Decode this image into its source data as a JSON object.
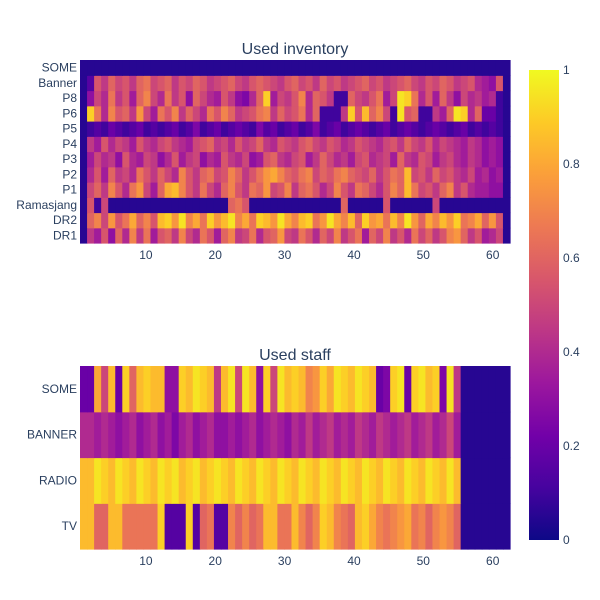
{
  "chart_data": [
    {
      "type": "heatmap",
      "title": "Used inventory",
      "y_categories": [
        "DR1",
        "DR2",
        "Ramasjang",
        "P1",
        "P2",
        "P3",
        "P4",
        "P5",
        "P6",
        "P8",
        "Banner",
        "SOME"
      ],
      "x_range": [
        1,
        62
      ],
      "x_ticks": [
        10,
        20,
        30,
        40,
        50,
        60
      ],
      "z_range": [
        0,
        1
      ],
      "colorscale": "plasma",
      "z": [
        [
          0.05,
          0.45,
          0.35,
          0.55,
          0.3,
          0.6,
          0.4,
          0.7,
          0.45,
          0.65,
          0.35,
          0.55,
          0.6,
          0.45,
          0.7,
          0.5,
          0.4,
          0.65,
          0.55,
          0.35,
          0.6,
          0.7,
          0.45,
          0.5,
          0.65,
          0.4,
          0.55,
          0.6,
          0.75,
          0.5,
          0.45,
          0.65,
          0.55,
          0.4,
          0.6,
          0.5,
          0.7,
          0.45,
          0.55,
          0.65,
          0.35,
          0.6,
          0.5,
          0.7,
          0.45,
          0.55,
          0.4,
          0.65,
          0.5,
          0.6,
          0.45,
          0.55,
          0.7,
          0.75,
          0.6,
          0.45,
          0.55,
          0.35,
          0.4,
          0.5,
          0.05
        ],
        [
          0.05,
          0.6,
          0.7,
          0.5,
          0.75,
          0.55,
          0.65,
          0.8,
          0.6,
          0.7,
          0.55,
          0.85,
          0.9,
          0.75,
          0.95,
          0.7,
          0.8,
          0.65,
          0.9,
          0.75,
          0.85,
          0.95,
          0.7,
          0.8,
          0.65,
          0.9,
          0.85,
          0.75,
          0.95,
          0.8,
          0.7,
          0.85,
          0.9,
          0.65,
          0.75,
          0.95,
          0.8,
          0.7,
          0.85,
          0.6,
          0.9,
          0.75,
          0.8,
          0.65,
          0.85,
          0.7,
          0.95,
          0.75,
          0.6,
          0.8,
          0.7,
          0.85,
          0.75,
          0.9,
          0.65,
          0.7,
          0.8,
          0.6,
          0.75,
          0.55,
          0.05
        ],
        [
          0.05,
          0.55,
          0.1,
          0.5,
          0.05,
          0.05,
          0.05,
          0.05,
          0.05,
          0.05,
          0.05,
          0.05,
          0.05,
          0.05,
          0.05,
          0.05,
          0.05,
          0.05,
          0.05,
          0.05,
          0.05,
          0.6,
          0.65,
          0.55,
          0.05,
          0.05,
          0.05,
          0.05,
          0.05,
          0.05,
          0.05,
          0.05,
          0.05,
          0.05,
          0.05,
          0.05,
          0.05,
          0.6,
          0.05,
          0.05,
          0.05,
          0.05,
          0.05,
          0.55,
          0.05,
          0.05,
          0.05,
          0.05,
          0.05,
          0.05,
          0.5,
          0.05,
          0.05,
          0.05,
          0.05,
          0.05,
          0.05,
          0.05,
          0.05,
          0.05,
          0.05
        ],
        [
          0.05,
          0.5,
          0.6,
          0.45,
          0.7,
          0.55,
          0.4,
          0.65,
          0.75,
          0.5,
          0.35,
          0.6,
          0.8,
          0.85,
          0.7,
          0.55,
          0.45,
          0.65,
          0.5,
          0.4,
          0.6,
          0.7,
          0.55,
          0.45,
          0.65,
          0.6,
          0.75,
          0.5,
          0.55,
          0.7,
          0.45,
          0.6,
          0.65,
          0.55,
          0.4,
          0.5,
          0.7,
          0.55,
          0.45,
          0.65,
          0.6,
          0.5,
          0.4,
          0.55,
          0.7,
          0.6,
          0.85,
          0.65,
          0.5,
          0.55,
          0.45,
          0.6,
          0.7,
          0.45,
          0.55,
          0.4,
          0.35,
          0.35,
          0.3,
          0.3,
          0.05
        ],
        [
          0.05,
          0.4,
          0.55,
          0.35,
          0.6,
          0.45,
          0.5,
          0.4,
          0.65,
          0.55,
          0.45,
          0.6,
          0.5,
          0.4,
          0.7,
          0.55,
          0.45,
          0.6,
          0.65,
          0.5,
          0.55,
          0.7,
          0.6,
          0.45,
          0.55,
          0.65,
          0.75,
          0.8,
          0.7,
          0.6,
          0.55,
          0.65,
          0.7,
          0.5,
          0.6,
          0.55,
          0.65,
          0.7,
          0.6,
          0.55,
          0.5,
          0.6,
          0.45,
          0.55,
          0.65,
          0.6,
          0.85,
          0.5,
          0.55,
          0.45,
          0.6,
          0.5,
          0.55,
          0.45,
          0.4,
          0.5,
          0.35,
          0.4,
          0.3,
          0.35,
          0.05
        ],
        [
          0.05,
          0.35,
          0.5,
          0.4,
          0.45,
          0.3,
          0.55,
          0.4,
          0.35,
          0.5,
          0.45,
          0.3,
          0.4,
          0.55,
          0.35,
          0.45,
          0.5,
          0.3,
          0.4,
          0.35,
          0.55,
          0.45,
          0.4,
          0.5,
          0.3,
          0.35,
          0.55,
          0.6,
          0.45,
          0.4,
          0.5,
          0.55,
          0.35,
          0.45,
          0.6,
          0.5,
          0.4,
          0.45,
          0.35,
          0.5,
          0.55,
          0.4,
          0.45,
          0.5,
          0.35,
          0.6,
          0.45,
          0.4,
          0.55,
          0.5,
          0.35,
          0.45,
          0.5,
          0.4,
          0.35,
          0.45,
          0.4,
          0.3,
          0.35,
          0.3,
          0.05
        ],
        [
          0.05,
          0.45,
          0.35,
          0.55,
          0.4,
          0.5,
          0.45,
          0.35,
          0.55,
          0.45,
          0.4,
          0.5,
          0.55,
          0.45,
          0.4,
          0.35,
          0.5,
          0.55,
          0.6,
          0.45,
          0.5,
          0.4,
          0.55,
          0.45,
          0.5,
          0.6,
          0.45,
          0.4,
          0.55,
          0.5,
          0.45,
          0.55,
          0.6,
          0.5,
          0.45,
          0.55,
          0.5,
          0.4,
          0.45,
          0.55,
          0.5,
          0.45,
          0.4,
          0.5,
          0.55,
          0.45,
          0.6,
          0.5,
          0.45,
          0.55,
          0.4,
          0.5,
          0.45,
          0.4,
          0.35,
          0.45,
          0.4,
          0.3,
          0.35,
          0.3,
          0.05
        ],
        [
          0.05,
          0.1,
          0.15,
          0.1,
          0.2,
          0.15,
          0.1,
          0.15,
          0.2,
          0.1,
          0.15,
          0.1,
          0.15,
          0.2,
          0.1,
          0.15,
          0.25,
          0.1,
          0.15,
          0.2,
          0.1,
          0.15,
          0.2,
          0.15,
          0.1,
          0.25,
          0.15,
          0.2,
          0.1,
          0.15,
          0.2,
          0.1,
          0.15,
          0.25,
          0.1,
          0.15,
          0.2,
          0.1,
          0.15,
          0.2,
          0.15,
          0.1,
          0.15,
          0.2,
          0.1,
          0.15,
          0.2,
          0.15,
          0.1,
          0.15,
          0.2,
          0.15,
          0.1,
          0.15,
          0.2,
          0.1,
          0.15,
          0.1,
          0.15,
          0.1,
          0.05
        ],
        [
          0.05,
          0.9,
          0.65,
          0.4,
          0.7,
          0.55,
          0.6,
          0.45,
          0.75,
          0.5,
          0.35,
          0.65,
          0.55,
          0.7,
          0.45,
          0.6,
          0.5,
          0.4,
          0.65,
          0.55,
          0.7,
          0.6,
          0.45,
          0.5,
          0.55,
          0.65,
          0.7,
          0.45,
          0.6,
          0.5,
          0.55,
          0.65,
          0.4,
          0.6,
          0.1,
          0.1,
          0.1,
          0.45,
          0.9,
          0.55,
          0.85,
          0.6,
          0.7,
          0.5,
          0.1,
          0.95,
          0.55,
          0.6,
          0.1,
          0.1,
          0.45,
          0.35,
          0.6,
          0.95,
          0.9,
          0.4,
          0.6,
          0.2,
          0.2,
          0.1,
          0.05
        ],
        [
          0.05,
          0.3,
          0.5,
          0.4,
          0.65,
          0.45,
          0.55,
          0.35,
          0.6,
          0.7,
          0.5,
          0.4,
          0.65,
          0.45,
          0.55,
          0.3,
          0.6,
          0.5,
          0.4,
          0.35,
          0.55,
          0.45,
          0.3,
          0.25,
          0.4,
          0.6,
          0.9,
          0.35,
          0.5,
          0.45,
          0.55,
          0.7,
          0.4,
          0.6,
          0.55,
          0.45,
          0.1,
          0.1,
          0.6,
          0.5,
          0.45,
          0.55,
          0.65,
          0.35,
          0.5,
          0.95,
          0.9,
          0.65,
          0.4,
          0.55,
          0.35,
          0.6,
          0.45,
          0.3,
          0.5,
          0.4,
          0.45,
          0.35,
          0.4,
          0.1,
          0.05
        ],
        [
          0.05,
          0.15,
          0.55,
          0.45,
          0.6,
          0.5,
          0.55,
          0.45,
          0.6,
          0.65,
          0.5,
          0.55,
          0.6,
          0.45,
          0.55,
          0.5,
          0.6,
          0.55,
          0.45,
          0.5,
          0.55,
          0.6,
          0.5,
          0.45,
          0.55,
          0.6,
          0.55,
          0.5,
          0.45,
          0.55,
          0.6,
          0.5,
          0.55,
          0.45,
          0.6,
          0.5,
          0.55,
          0.45,
          0.5,
          0.55,
          0.6,
          0.5,
          0.55,
          0.45,
          0.5,
          0.55,
          0.6,
          0.5,
          0.45,
          0.55,
          0.5,
          0.6,
          0.55,
          0.45,
          0.5,
          0.55,
          0.4,
          0.35,
          0.3,
          0.55,
          0.05
        ],
        [
          0.05,
          0.05,
          0.05,
          0.05,
          0.05,
          0.05,
          0.05,
          0.05,
          0.05,
          0.05,
          0.05,
          0.05,
          0.05,
          0.05,
          0.05,
          0.05,
          0.05,
          0.05,
          0.05,
          0.05,
          0.05,
          0.05,
          0.05,
          0.05,
          0.05,
          0.05,
          0.05,
          0.05,
          0.05,
          0.05,
          0.05,
          0.05,
          0.05,
          0.05,
          0.05,
          0.05,
          0.05,
          0.05,
          0.05,
          0.05,
          0.05,
          0.05,
          0.05,
          0.05,
          0.05,
          0.05,
          0.05,
          0.05,
          0.05,
          0.05,
          0.05,
          0.05,
          0.05,
          0.05,
          0.05,
          0.05,
          0.05,
          0.05,
          0.05,
          0.05,
          0.05
        ]
      ]
    },
    {
      "type": "heatmap",
      "title": "Used staff",
      "y_categories": [
        "TV",
        "RADIO",
        "BANNER",
        "SOME"
      ],
      "x_range": [
        1,
        62
      ],
      "x_ticks": [
        10,
        20,
        30,
        40,
        50,
        60
      ],
      "z_range": [
        0,
        1
      ],
      "colorscale": "plasma",
      "z": [
        [
          0.85,
          0.85,
          0.6,
          0.6,
          0.85,
          0.85,
          0.65,
          0.65,
          0.65,
          0.65,
          0.65,
          0.9,
          0.15,
          0.15,
          0.15,
          0.9,
          0.15,
          0.6,
          0.65,
          0.15,
          0.15,
          0.7,
          0.6,
          0.7,
          0.6,
          0.65,
          0.85,
          0.85,
          0.65,
          0.65,
          0.85,
          0.7,
          0.6,
          0.7,
          0.9,
          0.85,
          0.7,
          0.65,
          0.6,
          0.85,
          0.9,
          0.8,
          0.7,
          0.65,
          0.7,
          0.75,
          0.8,
          0.65,
          0.7,
          0.6,
          0.7,
          0.75,
          0.7,
          0.6,
          0.05,
          0.05,
          0.05,
          0.05,
          0.05,
          0.05,
          0.05
        ],
        [
          0.85,
          0.85,
          0.95,
          0.9,
          0.85,
          0.95,
          0.9,
          0.85,
          0.95,
          0.9,
          0.85,
          0.95,
          0.9,
          0.95,
          0.85,
          0.9,
          0.95,
          0.85,
          0.9,
          0.95,
          0.9,
          0.85,
          0.95,
          0.9,
          0.85,
          0.95,
          0.9,
          0.85,
          0.95,
          0.9,
          0.85,
          0.95,
          0.9,
          0.85,
          0.95,
          0.9,
          0.85,
          0.95,
          0.9,
          0.85,
          0.95,
          0.9,
          0.85,
          0.95,
          0.9,
          0.85,
          0.95,
          0.9,
          0.85,
          0.95,
          0.9,
          0.85,
          0.95,
          0.85,
          0.05,
          0.05,
          0.05,
          0.05,
          0.05,
          0.05,
          0.05
        ],
        [
          0.4,
          0.4,
          0.35,
          0.4,
          0.35,
          0.3,
          0.35,
          0.4,
          0.3,
          0.35,
          0.4,
          0.3,
          0.35,
          0.25,
          0.35,
          0.4,
          0.3,
          0.35,
          0.4,
          0.3,
          0.3,
          0.35,
          0.3,
          0.35,
          0.4,
          0.3,
          0.35,
          0.4,
          0.35,
          0.3,
          0.4,
          0.35,
          0.45,
          0.35,
          0.4,
          0.45,
          0.35,
          0.4,
          0.35,
          0.45,
          0.4,
          0.35,
          0.45,
          0.4,
          0.35,
          0.4,
          0.45,
          0.35,
          0.4,
          0.45,
          0.35,
          0.4,
          0.5,
          0.35,
          0.05,
          0.05,
          0.05,
          0.05,
          0.05,
          0.05,
          0.05
        ],
        [
          0.2,
          0.2,
          0.8,
          0.5,
          0.85,
          0.2,
          0.9,
          0.6,
          0.85,
          0.9,
          0.85,
          0.85,
          0.3,
          0.3,
          0.9,
          0.85,
          0.95,
          0.9,
          0.85,
          0.45,
          0.85,
          0.95,
          0.5,
          0.95,
          0.85,
          0.3,
          0.9,
          0.5,
          0.95,
          0.85,
          0.9,
          0.85,
          0.7,
          0.75,
          0.9,
          0.8,
          0.95,
          0.9,
          0.85,
          0.95,
          0.9,
          0.85,
          0.2,
          0.25,
          0.9,
          0.95,
          0.2,
          0.9,
          0.95,
          0.85,
          0.9,
          0.25,
          0.95,
          0.45,
          0.05,
          0.05,
          0.05,
          0.05,
          0.05,
          0.05,
          0.05
        ]
      ]
    }
  ],
  "colorbar": {
    "ticks": [
      "0",
      "0.2",
      "0.4",
      "0.6",
      "0.8",
      "1"
    ],
    "values": [
      0,
      0.2,
      0.4,
      0.6,
      0.8,
      1
    ]
  }
}
